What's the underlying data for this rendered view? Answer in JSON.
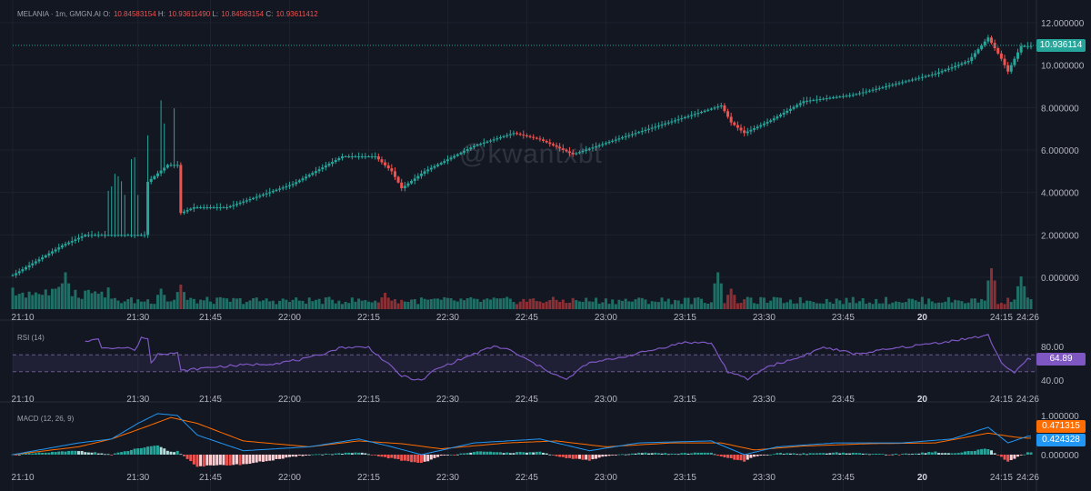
{
  "header": {
    "symbol": "MELANIA · 1m, GMGN.AI",
    "open_label": "O:",
    "open": "10.84583154",
    "high_label": "H:",
    "high": "10.93611490",
    "low_label": "L:",
    "low": "10.84583154",
    "close_label": "C:",
    "close": "10.93611412"
  },
  "watermark": "@kwantxbt",
  "rsi_label": "RSI (14)",
  "macd_label": "MACD (12, 26, 9)",
  "colors": {
    "up": "#26a69a",
    "down": "#ef5350",
    "rsi": "#7e57c2",
    "macd": "#2196f3",
    "signal": "#ff6d00",
    "hist_up_light": "#b2dfdb",
    "hist_down_light": "#ffcdd2"
  },
  "chart_data": [
    {
      "type": "candlestick",
      "x_ticks": [
        "21:10",
        "21:30",
        "21:45",
        "22:00",
        "22:15",
        "22:30",
        "22:45",
        "23:00",
        "23:15",
        "23:30",
        "23:45",
        "20",
        "24:15",
        "24:26"
      ],
      "y_ticks": [
        "12.000000",
        "10.000000",
        "8.000000",
        "6.000000",
        "4.000000",
        "2.000000",
        "0.000000"
      ],
      "ylim": [
        0,
        12
      ],
      "last_price": "10.936114",
      "close_path": [
        [
          0,
          0.1
        ],
        [
          15,
          1.5
        ],
        [
          22,
          2.0
        ],
        [
          40,
          2.0
        ],
        [
          41,
          4.5
        ],
        [
          47,
          5.3
        ],
        [
          50,
          5.3
        ],
        [
          50.5,
          3.0
        ],
        [
          55,
          3.3
        ],
        [
          65,
          3.3
        ],
        [
          85,
          4.4
        ],
        [
          100,
          5.7
        ],
        [
          110,
          5.7
        ],
        [
          115,
          5.0
        ],
        [
          118,
          4.2
        ],
        [
          125,
          5.0
        ],
        [
          140,
          6.2
        ],
        [
          152,
          6.8
        ],
        [
          160,
          6.5
        ],
        [
          170,
          5.8
        ],
        [
          185,
          6.6
        ],
        [
          205,
          7.6
        ],
        [
          215,
          8.1
        ],
        [
          218,
          7.3
        ],
        [
          222,
          6.8
        ],
        [
          230,
          7.4
        ],
        [
          240,
          8.3
        ],
        [
          255,
          8.6
        ],
        [
          265,
          9.0
        ],
        [
          280,
          9.6
        ],
        [
          290,
          10.2
        ],
        [
          296,
          11.3
        ],
        [
          300,
          10.3
        ],
        [
          302,
          9.7
        ],
        [
          306,
          10.9
        ]
      ],
      "volume_spikes": [
        [
          16,
          0.9
        ],
        [
          45,
          0.5
        ],
        [
          51,
          0.6
        ],
        [
          113,
          0.4
        ],
        [
          214,
          0.9
        ],
        [
          218,
          0.5
        ],
        [
          297,
          1.0
        ],
        [
          306,
          0.8
        ]
      ]
    },
    {
      "type": "line",
      "name": "RSI (14)",
      "y_ticks": [
        "80.00",
        "40.00"
      ],
      "ylim": [
        30,
        95
      ],
      "levels": [
        70,
        50
      ],
      "last_value": "64.89",
      "path": [
        [
          22,
          87
        ],
        [
          26,
          88
        ],
        [
          27,
          79
        ],
        [
          36,
          78
        ],
        [
          37,
          74
        ],
        [
          39,
          91
        ],
        [
          41,
          89
        ],
        [
          42,
          60
        ],
        [
          44,
          72
        ],
        [
          50,
          72
        ],
        [
          51,
          51
        ],
        [
          62,
          56
        ],
        [
          80,
          60
        ],
        [
          90,
          66
        ],
        [
          100,
          79
        ],
        [
          108,
          79
        ],
        [
          118,
          45
        ],
        [
          124,
          39
        ],
        [
          128,
          52
        ],
        [
          138,
          68
        ],
        [
          146,
          80
        ],
        [
          150,
          77
        ],
        [
          160,
          56
        ],
        [
          168,
          40
        ],
        [
          174,
          59
        ],
        [
          188,
          70
        ],
        [
          204,
          85
        ],
        [
          212,
          84
        ],
        [
          217,
          50
        ],
        [
          223,
          41
        ],
        [
          229,
          56
        ],
        [
          238,
          66
        ],
        [
          246,
          79
        ],
        [
          256,
          71
        ],
        [
          270,
          79
        ],
        [
          282,
          85
        ],
        [
          296,
          93
        ],
        [
          300,
          61
        ],
        [
          304,
          48
        ],
        [
          308,
          65
        ]
      ]
    },
    {
      "type": "line",
      "name": "MACD (12, 26, 9)",
      "y_ticks": [
        "1.000000",
        "0.000000"
      ],
      "ylim": [
        -0.4,
        1.1
      ],
      "macd_last": "0.471315",
      "signal_last": "0.424328",
      "macd_path": [
        [
          0,
          0.0
        ],
        [
          20,
          0.3
        ],
        [
          30,
          0.4
        ],
        [
          38,
          0.8
        ],
        [
          44,
          1.05
        ],
        [
          50,
          1.0
        ],
        [
          56,
          0.5
        ],
        [
          70,
          0.1
        ],
        [
          90,
          0.2
        ],
        [
          105,
          0.4
        ],
        [
          115,
          0.2
        ],
        [
          124,
          0.0
        ],
        [
          140,
          0.3
        ],
        [
          160,
          0.4
        ],
        [
          175,
          0.1
        ],
        [
          190,
          0.3
        ],
        [
          212,
          0.35
        ],
        [
          222,
          0.0
        ],
        [
          232,
          0.2
        ],
        [
          250,
          0.3
        ],
        [
          270,
          0.3
        ],
        [
          285,
          0.4
        ],
        [
          296,
          0.7
        ],
        [
          302,
          0.3
        ],
        [
          308,
          0.47
        ]
      ],
      "signal_path": [
        [
          0,
          0.0
        ],
        [
          20,
          0.2
        ],
        [
          30,
          0.4
        ],
        [
          40,
          0.7
        ],
        [
          48,
          0.95
        ],
        [
          56,
          0.8
        ],
        [
          70,
          0.35
        ],
        [
          90,
          0.2
        ],
        [
          105,
          0.35
        ],
        [
          118,
          0.28
        ],
        [
          130,
          0.15
        ],
        [
          150,
          0.3
        ],
        [
          165,
          0.35
        ],
        [
          180,
          0.2
        ],
        [
          200,
          0.3
        ],
        [
          215,
          0.3
        ],
        [
          225,
          0.12
        ],
        [
          240,
          0.22
        ],
        [
          260,
          0.28
        ],
        [
          280,
          0.3
        ],
        [
          296,
          0.55
        ],
        [
          304,
          0.45
        ],
        [
          308,
          0.42
        ]
      ]
    }
  ]
}
